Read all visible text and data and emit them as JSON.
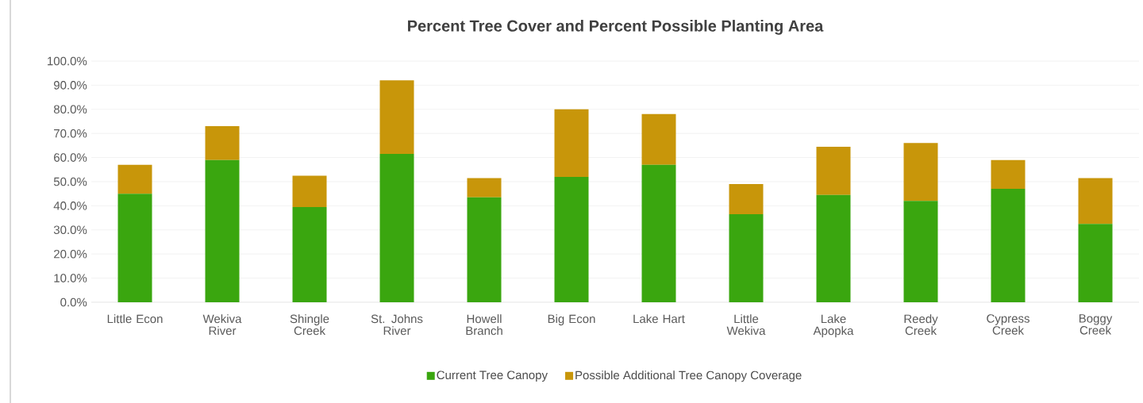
{
  "chart_data": {
    "type": "bar",
    "title": "Percent Tree Cover and Percent Possible Planting Area",
    "categories": [
      "Little Econ",
      "Wekiva River",
      "Shingle Creek",
      "St. Johns River",
      "Howell Branch",
      "Big Econ",
      "Lake Hart",
      "Little Wekiva",
      "Lake Apopka",
      "Reedy Creek",
      "Cypress Creek",
      "Boggy Creek"
    ],
    "series": [
      {
        "name": "Current Tree Canopy",
        "color": "#3aa60f",
        "values": [
          45,
          59,
          39.5,
          61.5,
          43.5,
          52,
          57,
          36.5,
          44.5,
          42,
          47,
          32.5
        ]
      },
      {
        "name": "Possible Additional Tree Canopy Coverage",
        "color": "#c8960a",
        "values": [
          12,
          14,
          13,
          30.5,
          8,
          28,
          21,
          12.5,
          20,
          24,
          12,
          19
        ]
      }
    ],
    "stacked": true,
    "ylim": [
      0,
      100
    ],
    "yticks": [
      {
        "value": 0,
        "label": "0.0%"
      },
      {
        "value": 10,
        "label": "10.0%"
      },
      {
        "value": 20,
        "label": "20.0%"
      },
      {
        "value": 30,
        "label": "30.0%"
      },
      {
        "value": 40,
        "label": "40.0%"
      },
      {
        "value": 50,
        "label": "50.0%"
      },
      {
        "value": 60,
        "label": "60.0%"
      },
      {
        "value": 70,
        "label": "70.0%"
      },
      {
        "value": 80,
        "label": "80.0%"
      },
      {
        "value": 90,
        "label": "90.0%"
      },
      {
        "value": 100,
        "label": "100.0%"
      }
    ],
    "grid": "y",
    "legend": "bottom"
  }
}
